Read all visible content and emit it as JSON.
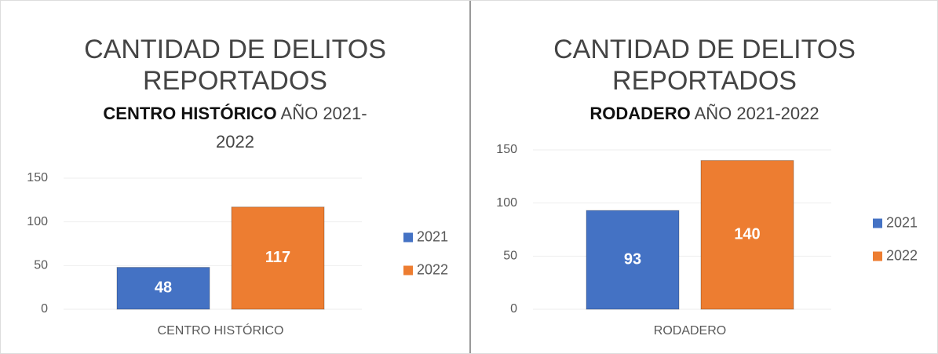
{
  "chart_data": [
    {
      "type": "bar",
      "title": "CANTIDAD DE DELITOS REPORTADOS",
      "subtitle_bold": "CENTRO HISTÓRICO",
      "subtitle": "AÑO 2021-2022",
      "categories": [
        "CENTRO HISTÓRICO"
      ],
      "series": [
        {
          "name": "2021",
          "color": "#4472c4",
          "values": [
            48
          ]
        },
        {
          "name": "2022",
          "color": "#ed7d31",
          "values": [
            117
          ]
        }
      ],
      "ylim": [
        0,
        150
      ],
      "yticks": [
        0,
        50,
        100,
        150
      ],
      "grid": true,
      "legend": "right"
    },
    {
      "type": "bar",
      "title": "CANTIDAD DE DELITOS REPORTADOS",
      "subtitle_bold": "RODADERO",
      "subtitle": "AÑO 2021-2022",
      "categories": [
        "RODADERO"
      ],
      "series": [
        {
          "name": "2021",
          "color": "#4472c4",
          "values": [
            93
          ]
        },
        {
          "name": "2022",
          "color": "#ed7d31",
          "values": [
            140
          ]
        }
      ],
      "ylim": [
        0,
        150
      ],
      "yticks": [
        0,
        50,
        100,
        150
      ],
      "grid": true,
      "legend": "right"
    }
  ]
}
